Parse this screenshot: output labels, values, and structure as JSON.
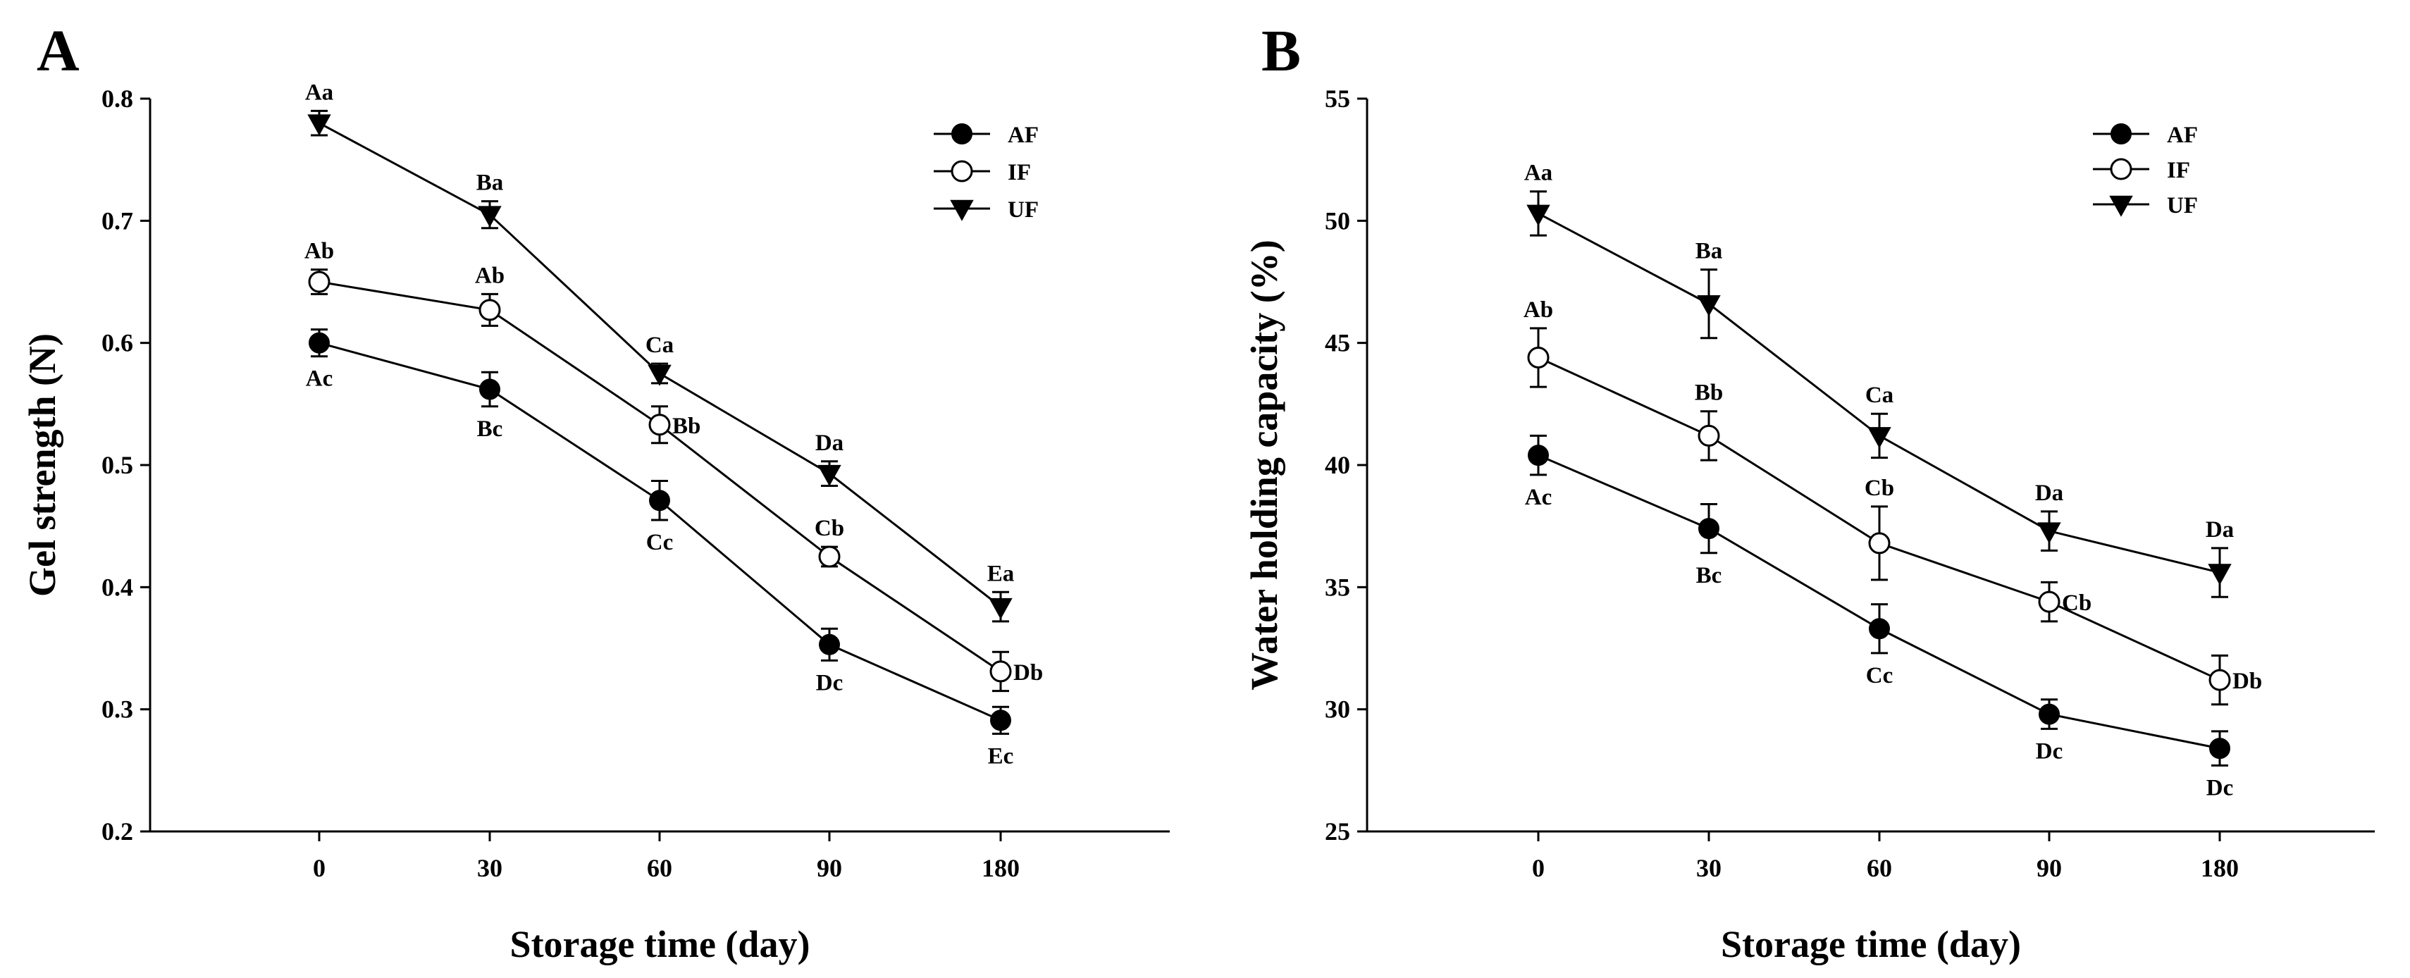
{
  "chart_data": [
    {
      "panel": "A",
      "type": "line",
      "xlabel": "Storage time (day)",
      "ylabel": "Gel strength (N)",
      "categories": [
        "0",
        "30",
        "60",
        "90",
        "180"
      ],
      "ylim": [
        0.2,
        0.8
      ],
      "yticks": [
        "0.2",
        "0.3",
        "0.4",
        "0.5",
        "0.6",
        "0.7",
        "0.8"
      ],
      "legend_position": "top-right",
      "series": [
        {
          "name": "AF",
          "marker": "filled-circle",
          "values": [
            0.6,
            0.562,
            0.471,
            0.353,
            0.291
          ],
          "errors": [
            0.011,
            0.014,
            0.016,
            0.013,
            0.011
          ],
          "labels": [
            "Ac",
            "Bc",
            "Cc",
            "Dc",
            "Ec"
          ],
          "label_side": [
            "below",
            "below",
            "below",
            "below",
            "below"
          ]
        },
        {
          "name": "IF",
          "marker": "open-circle",
          "values": [
            0.65,
            0.627,
            0.533,
            0.425,
            0.331
          ],
          "errors": [
            0.01,
            0.013,
            0.015,
            0.008,
            0.016
          ],
          "labels": [
            "Ab",
            "Ab",
            "Bb",
            "Cb",
            "Db"
          ],
          "label_side": [
            "above",
            "above",
            "right",
            "above",
            "right"
          ]
        },
        {
          "name": "UF",
          "marker": "filled-triangle-down",
          "values": [
            0.78,
            0.705,
            0.575,
            0.493,
            0.384
          ],
          "errors": [
            0.01,
            0.011,
            0.008,
            0.01,
            0.012
          ],
          "labels": [
            "Aa",
            "Ba",
            "Ca",
            "Da",
            "Ea"
          ],
          "label_side": [
            "above",
            "above",
            "above",
            "above",
            "above"
          ]
        }
      ]
    },
    {
      "panel": "B",
      "type": "line",
      "xlabel": "Storage time (day)",
      "ylabel": "Water holding capacity  (%)",
      "categories": [
        "0",
        "30",
        "60",
        "90",
        "180"
      ],
      "ylim": [
        25,
        55
      ],
      "yticks": [
        "25",
        "30",
        "35",
        "40",
        "45",
        "50",
        "55"
      ],
      "legend_position": "top-right",
      "series": [
        {
          "name": "AF",
          "marker": "filled-circle",
          "values": [
            40.4,
            37.4,
            33.3,
            29.8,
            28.4
          ],
          "errors": [
            0.8,
            1.0,
            1.0,
            0.6,
            0.7
          ],
          "labels": [
            "Ac",
            "Bc",
            "Cc",
            "Dc",
            "Dc"
          ],
          "label_side": [
            "below",
            "below",
            "below",
            "below",
            "below"
          ]
        },
        {
          "name": "IF",
          "marker": "open-circle",
          "values": [
            44.4,
            41.2,
            36.8,
            34.4,
            31.2
          ],
          "errors": [
            1.2,
            1.0,
            1.5,
            0.8,
            1.0
          ],
          "labels": [
            "Ab",
            "Bb",
            "Cb",
            "Cb",
            "Db"
          ],
          "label_side": [
            "above",
            "above",
            "above",
            "right",
            "right"
          ]
        },
        {
          "name": "UF",
          "marker": "filled-triangle-down",
          "values": [
            50.3,
            46.6,
            41.2,
            37.3,
            35.6
          ],
          "errors": [
            0.9,
            1.4,
            0.9,
            0.8,
            1.0
          ],
          "labels": [
            "Aa",
            "Ba",
            "Ca",
            "Da",
            "Da"
          ],
          "label_side": [
            "above",
            "above",
            "above",
            "above",
            "above"
          ]
        }
      ]
    }
  ]
}
